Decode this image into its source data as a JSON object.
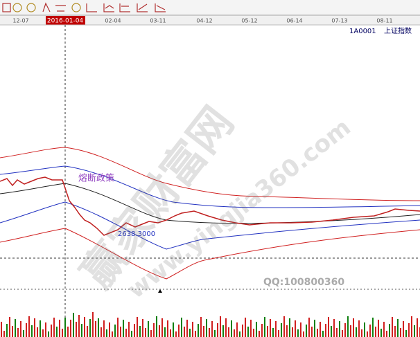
{
  "timeline": {
    "dates": [
      "12-07",
      "02-04",
      "03-11",
      "04-12",
      "05-12",
      "06-14",
      "07-13",
      "08-11"
    ],
    "selected_date": "2016-01-04"
  },
  "header": {
    "code": "1A0001",
    "name": "上证指数"
  },
  "annotations": {
    "policy": "熔断政策",
    "low_price": "2638.3000"
  },
  "watermark": {
    "brand": "赢家财富网",
    "url": "www.yingjia360.com",
    "qq": "QQ:100800360"
  }
}
